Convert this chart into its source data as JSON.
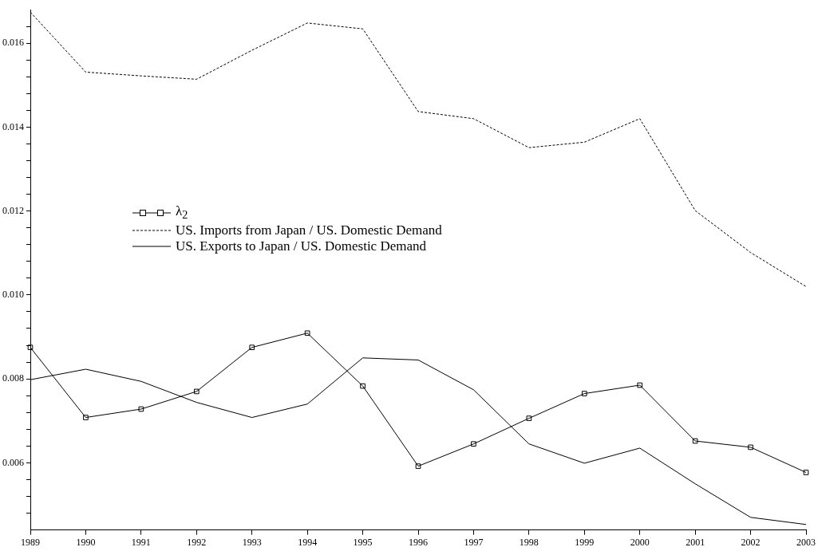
{
  "chart_data": {
    "type": "line",
    "categories": [
      "1989",
      "1990",
      "1991",
      "1992",
      "1993",
      "1994",
      "1995",
      "1996",
      "1997",
      "1998",
      "1999",
      "2000",
      "2001",
      "2002",
      "2003"
    ],
    "series": [
      {
        "name": "λ$_{2}$",
        "color": "#000000",
        "marker": "square",
        "line_style": "solid",
        "values": [
          0.00875,
          0.00708,
          0.00728,
          0.0077,
          0.00875,
          0.00909,
          0.00783,
          0.00592,
          0.00645,
          0.00706,
          0.00765,
          0.00785,
          0.00652,
          0.00637,
          0.00577
        ]
      },
      {
        "name": "US. Imports from Japan / US. Domestic Demand",
        "color": "#000000",
        "marker": "none",
        "line_style": "dashed",
        "values": [
          0.01674,
          0.01531,
          0.01522,
          0.01514,
          0.01583,
          0.01648,
          0.01634,
          0.01437,
          0.0142,
          0.01351,
          0.01364,
          0.0142,
          0.01201,
          0.01101,
          0.0102
        ]
      },
      {
        "name": "US. Exports to Japan / US. Domestic Demand",
        "color": "#000000",
        "marker": "none",
        "line_style": "solid",
        "values": [
          0.00798,
          0.00823,
          0.00794,
          0.00744,
          0.00708,
          0.0074,
          0.0085,
          0.00845,
          0.00774,
          0.00645,
          0.00599,
          0.00635,
          0.0055,
          0.0047,
          0.00453
        ]
      }
    ],
    "ylim": [
      0.0044,
      0.0168
    ],
    "yticks": [
      {
        "value": 0.0048,
        "label": null
      },
      {
        "value": 0.0052,
        "label": null
      },
      {
        "value": 0.0056,
        "label": null
      },
      {
        "value": 0.006,
        "label": "0.006"
      },
      {
        "value": 0.0064,
        "label": null
      },
      {
        "value": 0.0068,
        "label": null
      },
      {
        "value": 0.0072,
        "label": null
      },
      {
        "value": 0.0076,
        "label": null
      },
      {
        "value": 0.008,
        "label": "0.008"
      },
      {
        "value": 0.0084,
        "label": null
      },
      {
        "value": 0.0088,
        "label": null
      },
      {
        "value": 0.0092,
        "label": null
      },
      {
        "value": 0.0096,
        "label": null
      },
      {
        "value": 0.01,
        "label": "0.010"
      },
      {
        "value": 0.0104,
        "label": null
      },
      {
        "value": 0.0108,
        "label": null
      },
      {
        "value": 0.0112,
        "label": null
      },
      {
        "value": 0.0116,
        "label": null
      },
      {
        "value": 0.012,
        "label": "0.012"
      },
      {
        "value": 0.0124,
        "label": null
      },
      {
        "value": 0.0128,
        "label": null
      },
      {
        "value": 0.0132,
        "label": null
      },
      {
        "value": 0.0136,
        "label": null
      },
      {
        "value": 0.014,
        "label": "0.014"
      },
      {
        "value": 0.0144,
        "label": null
      },
      {
        "value": 0.0148,
        "label": null
      },
      {
        "value": 0.0152,
        "label": null
      },
      {
        "value": 0.0156,
        "label": null
      },
      {
        "value": 0.016,
        "label": "0.016"
      },
      {
        "value": 0.0164,
        "label": null
      }
    ],
    "grid": false,
    "legend": "left"
  }
}
